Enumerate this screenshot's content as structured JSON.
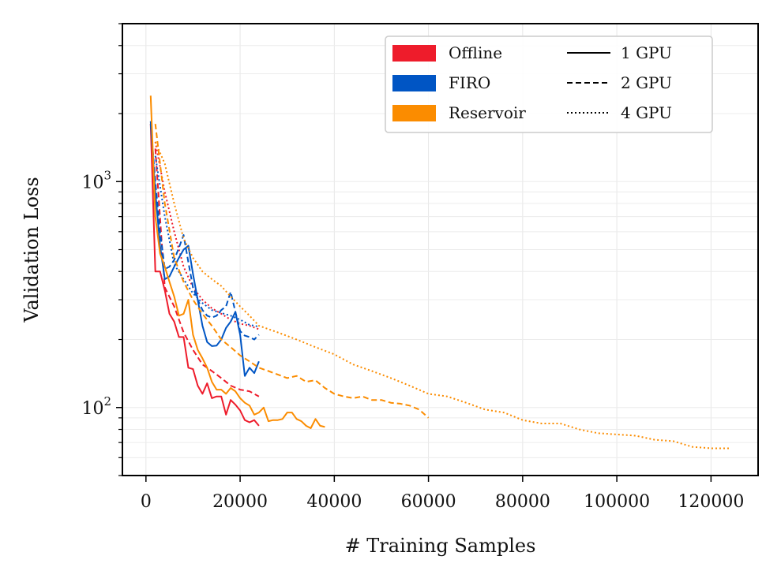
{
  "chart_data": {
    "type": "line",
    "title": "",
    "xlabel": "# Training Samples",
    "ylabel": "Validation Loss",
    "xlim": [
      -5000,
      130000
    ],
    "ylim": [
      50,
      5000
    ],
    "yscale": "log",
    "grid": true,
    "x_ticks": [
      0,
      20000,
      40000,
      60000,
      80000,
      100000,
      120000
    ],
    "x_tick_labels": [
      "0",
      "20000",
      "40000",
      "60000",
      "80000",
      "100000",
      "120000"
    ],
    "y_ticks": [
      {
        "value": 100,
        "base": "10",
        "exp": "2"
      },
      {
        "value": 1000,
        "base": "10",
        "exp": "3"
      }
    ],
    "legend_position": "top-right",
    "legend": {
      "methods": [
        {
          "name": "Offline",
          "color": "#ee1c2b"
        },
        {
          "name": "FIRO",
          "color": "#0055c4"
        },
        {
          "name": "Reservoir",
          "color": "#fb8c00"
        }
      ],
      "styles": [
        {
          "name": "1 GPU",
          "dash": "none"
        },
        {
          "name": "2 GPU",
          "dash": "dashed"
        },
        {
          "name": "4 GPU",
          "dash": "dotted"
        }
      ]
    },
    "series": [
      {
        "name": "Offline 1 GPU",
        "method": "Offline",
        "gpus": "1 GPU",
        "color": "#ee1c2b",
        "dash": "none",
        "x": [
          1000,
          2000,
          3000,
          4000,
          5000,
          6000,
          7000,
          8000,
          9000,
          10000,
          11000,
          12000,
          13000,
          14000,
          15000,
          16000,
          17000,
          18000,
          19000,
          20000,
          21000,
          22000,
          23000,
          24000
        ],
        "y": [
          1800,
          400,
          400,
          330,
          260,
          240,
          205,
          205,
          150,
          148,
          125,
          115,
          128,
          110,
          112,
          112,
          93,
          108,
          103,
          97,
          88,
          86,
          88,
          83
        ]
      },
      {
        "name": "Offline 2 GPU",
        "method": "Offline",
        "gpus": "2 GPU",
        "color": "#ee1c2b",
        "dash": "dashed",
        "x": [
          2000,
          4000,
          6000,
          8000,
          10000,
          12000,
          14000,
          16000,
          18000,
          20000,
          22000,
          24000
        ],
        "y": [
          1400,
          340,
          280,
          215,
          180,
          155,
          145,
          135,
          125,
          120,
          118,
          112
        ]
      },
      {
        "name": "Offline 4 GPU",
        "method": "Offline",
        "gpus": "4 GPU",
        "color": "#ee1c2b",
        "dash": "dotted",
        "x": [
          2000,
          4000,
          6000,
          8000,
          10000,
          12000,
          14000,
          16000,
          18000,
          20000,
          22000,
          24000
        ],
        "y": [
          1500,
          900,
          600,
          420,
          340,
          300,
          275,
          260,
          245,
          235,
          230,
          222
        ]
      },
      {
        "name": "FIRO 1 GPU",
        "method": "FIRO",
        "gpus": "1 GPU",
        "color": "#0055c4",
        "dash": "none",
        "x": [
          1000,
          2000,
          3000,
          4000,
          5000,
          6000,
          7000,
          8000,
          9000,
          10000,
          11000,
          12000,
          13000,
          14000,
          15000,
          16000,
          17000,
          18000,
          19000,
          20000,
          21000,
          22000,
          23000,
          24000
        ],
        "y": [
          1850,
          900,
          520,
          370,
          380,
          420,
          460,
          500,
          520,
          390,
          300,
          230,
          195,
          187,
          188,
          200,
          225,
          240,
          265,
          210,
          138,
          150,
          142,
          160
        ]
      },
      {
        "name": "FIRO 2 GPU",
        "method": "FIRO",
        "gpus": "2 GPU",
        "color": "#0055c4",
        "dash": "dashed",
        "x": [
          1000,
          2000,
          3000,
          4000,
          5000,
          6000,
          7000,
          8000,
          9000,
          10000,
          11000,
          12000,
          13000,
          14000,
          15000,
          16000,
          17000,
          18000,
          19000,
          20000,
          21000,
          22000,
          23000,
          24000
        ],
        "y": [
          1800,
          1000,
          600,
          410,
          420,
          450,
          510,
          580,
          440,
          340,
          300,
          270,
          255,
          250,
          255,
          270,
          280,
          325,
          265,
          218,
          208,
          205,
          200,
          210
        ]
      },
      {
        "name": "FIRO 4 GPU",
        "method": "FIRO",
        "gpus": "4 GPU",
        "color": "#0055c4",
        "dash": "dotted",
        "x": [
          2000,
          4000,
          6000,
          8000,
          10000,
          12000,
          14000,
          16000,
          18000,
          20000,
          22000,
          24000
        ],
        "y": [
          1300,
          700,
          430,
          370,
          320,
          290,
          270,
          262,
          255,
          245,
          232,
          228
        ]
      },
      {
        "name": "Reservoir 1 GPU",
        "method": "Reservoir",
        "gpus": "1 GPU",
        "color": "#fb8c00",
        "dash": "none",
        "x": [
          1000,
          2000,
          3000,
          4000,
          5000,
          6000,
          7000,
          8000,
          9000,
          10000,
          11000,
          12000,
          13000,
          14000,
          15000,
          16000,
          17000,
          18000,
          19000,
          20000,
          21000,
          22000,
          23000,
          24000,
          25000,
          26000,
          27000,
          28000,
          29000,
          30000,
          31000,
          32000,
          33000,
          34000,
          35000,
          36000,
          37000,
          38000
        ],
        "y": [
          2400,
          700,
          480,
          420,
          360,
          310,
          255,
          260,
          300,
          210,
          180,
          165,
          150,
          130,
          120,
          120,
          115,
          122,
          118,
          110,
          105,
          102,
          93,
          95,
          100,
          87,
          88,
          88,
          89,
          95,
          95,
          89,
          87,
          83,
          81,
          89,
          83,
          82
        ]
      },
      {
        "name": "Reservoir 2 GPU",
        "method": "Reservoir",
        "gpus": "2 GPU",
        "color": "#fb8c00",
        "dash": "dashed",
        "x": [
          2000,
          4000,
          6000,
          8000,
          10000,
          12000,
          14000,
          16000,
          18000,
          20000,
          22000,
          24000,
          26000,
          28000,
          30000,
          32000,
          34000,
          36000,
          38000,
          40000,
          42000,
          44000,
          46000,
          48000,
          50000,
          52000,
          54000,
          56000,
          58000,
          60000
        ],
        "y": [
          1800,
          800,
          460,
          360,
          300,
          260,
          230,
          200,
          185,
          170,
          160,
          150,
          145,
          140,
          135,
          138,
          130,
          132,
          122,
          115,
          112,
          110,
          112,
          108,
          108,
          105,
          104,
          102,
          98,
          90
        ]
      },
      {
        "name": "Reservoir 4 GPU",
        "method": "Reservoir",
        "gpus": "4 GPU",
        "color": "#fb8c00",
        "dash": "dotted",
        "x": [
          2000,
          4000,
          6000,
          8000,
          10000,
          12000,
          14000,
          16000,
          18000,
          20000,
          22000,
          24000,
          28000,
          32000,
          36000,
          40000,
          44000,
          48000,
          52000,
          56000,
          60000,
          64000,
          68000,
          72000,
          76000,
          80000,
          84000,
          88000,
          92000,
          96000,
          100000,
          104000,
          108000,
          112000,
          116000,
          120000,
          124000
        ],
        "y": [
          1500,
          1200,
          800,
          560,
          460,
          400,
          370,
          345,
          310,
          280,
          255,
          230,
          215,
          200,
          185,
          172,
          155,
          145,
          135,
          125,
          115,
          112,
          105,
          98,
          95,
          88,
          85,
          85,
          80,
          77,
          76,
          75,
          72,
          71,
          67,
          66,
          66
        ]
      }
    ]
  }
}
